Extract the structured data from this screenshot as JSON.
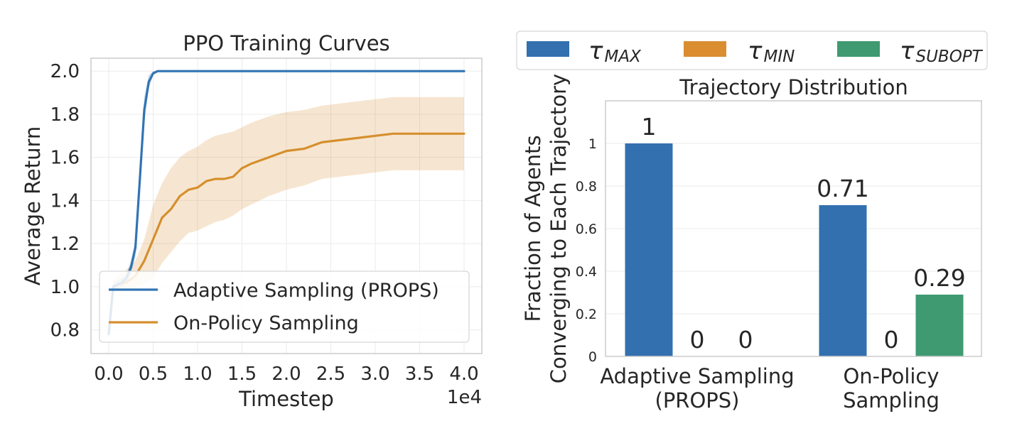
{
  "chart_data": [
    {
      "type": "line",
      "title": "PPO Training Curves",
      "xlabel": "Timestep",
      "ylabel": "Average Return",
      "x_offset_label": "1e4",
      "xlim": [
        -0.2,
        4.2
      ],
      "ylim": [
        0.69,
        2.06
      ],
      "xticks": [
        "0.0",
        "0.5",
        "1.0",
        "1.5",
        "2.0",
        "2.5",
        "3.0",
        "3.5",
        "4.0"
      ],
      "yticks": [
        "0.8",
        "1.0",
        "1.2",
        "1.4",
        "1.6",
        "1.8",
        "2.0"
      ],
      "grid": true,
      "legend_position": "lower-left",
      "series": [
        {
          "name": "Adaptive Sampling (PROPS)",
          "color": "#3274b3",
          "x": [
            0,
            0.05,
            0.1,
            0.15,
            0.2,
            0.25,
            0.3,
            0.35,
            0.4,
            0.45,
            0.5,
            0.55,
            0.6,
            0.8,
            1.0,
            2.0,
            3.0,
            4.0
          ],
          "y": [
            0.78,
            1.0,
            1.01,
            1.02,
            1.04,
            1.09,
            1.18,
            1.5,
            1.82,
            1.95,
            1.99,
            2.0,
            2.0,
            2.0,
            2.0,
            2.0,
            2.0,
            2.0
          ],
          "lower": [
            0.77,
            0.98,
            0.99,
            1.0,
            1.02,
            1.06,
            1.14,
            1.44,
            1.76,
            1.92,
            1.98,
            2.0,
            2.0,
            2.0,
            2.0,
            2.0,
            2.0,
            2.0
          ],
          "upper": [
            0.79,
            1.02,
            1.03,
            1.04,
            1.06,
            1.12,
            1.22,
            1.56,
            1.88,
            1.98,
            2.0,
            2.0,
            2.0,
            2.0,
            2.0,
            2.0,
            2.0,
            2.0
          ]
        },
        {
          "name": "On-Policy Sampling",
          "color": "#d68f2d",
          "x": [
            0,
            0.05,
            0.1,
            0.2,
            0.3,
            0.4,
            0.5,
            0.6,
            0.7,
            0.8,
            0.9,
            1.0,
            1.1,
            1.2,
            1.3,
            1.4,
            1.5,
            1.6,
            1.8,
            2.0,
            2.2,
            2.4,
            2.6,
            2.8,
            3.0,
            3.2,
            3.6,
            4.0
          ],
          "y": [
            0.78,
            1.0,
            1.01,
            1.02,
            1.05,
            1.12,
            1.22,
            1.32,
            1.36,
            1.42,
            1.45,
            1.46,
            1.49,
            1.5,
            1.5,
            1.51,
            1.55,
            1.57,
            1.6,
            1.63,
            1.64,
            1.67,
            1.68,
            1.69,
            1.7,
            1.71,
            1.71,
            1.71
          ],
          "lower": [
            0.77,
            0.97,
            0.98,
            0.99,
            1.0,
            1.01,
            1.04,
            1.11,
            1.16,
            1.21,
            1.25,
            1.26,
            1.28,
            1.3,
            1.31,
            1.33,
            1.36,
            1.38,
            1.42,
            1.45,
            1.47,
            1.5,
            1.51,
            1.52,
            1.53,
            1.54,
            1.54,
            1.54
          ],
          "upper": [
            0.79,
            1.03,
            1.05,
            1.08,
            1.12,
            1.22,
            1.38,
            1.48,
            1.55,
            1.6,
            1.63,
            1.65,
            1.68,
            1.7,
            1.71,
            1.72,
            1.74,
            1.76,
            1.79,
            1.81,
            1.82,
            1.84,
            1.85,
            1.86,
            1.87,
            1.88,
            1.88,
            1.88
          ]
        }
      ]
    },
    {
      "type": "bar",
      "title": "Trajectory Distribution",
      "ylabel": [
        "Fraction of Agents",
        "Converging to Each Trajectory"
      ],
      "categories": [
        [
          "Adaptive Sampling",
          "(PROPS)"
        ],
        [
          "On-Policy",
          "Sampling"
        ]
      ],
      "ylim": [
        0,
        1.2
      ],
      "yticks": [
        "0",
        "0.2",
        "0.4",
        "0.6",
        "0.8",
        "1"
      ],
      "grid": true,
      "legend_position": "top",
      "series": [
        {
          "name": "τMAX",
          "name_main": "τ",
          "name_sub": "MAX",
          "color": "#3270b0",
          "values": [
            1,
            0.71
          ],
          "labels": [
            "1",
            "0.71"
          ]
        },
        {
          "name": "τMIN",
          "name_main": "τ",
          "name_sub": "MIN",
          "color": "#da8e30",
          "values": [
            0,
            0
          ],
          "labels": [
            "0",
            "0"
          ]
        },
        {
          "name": "τSUBOPT",
          "name_main": "τ",
          "name_sub": "SUBOPT",
          "color": "#3f9a71",
          "values": [
            0,
            0.29
          ],
          "labels": [
            "0",
            "0.29"
          ]
        }
      ]
    }
  ]
}
